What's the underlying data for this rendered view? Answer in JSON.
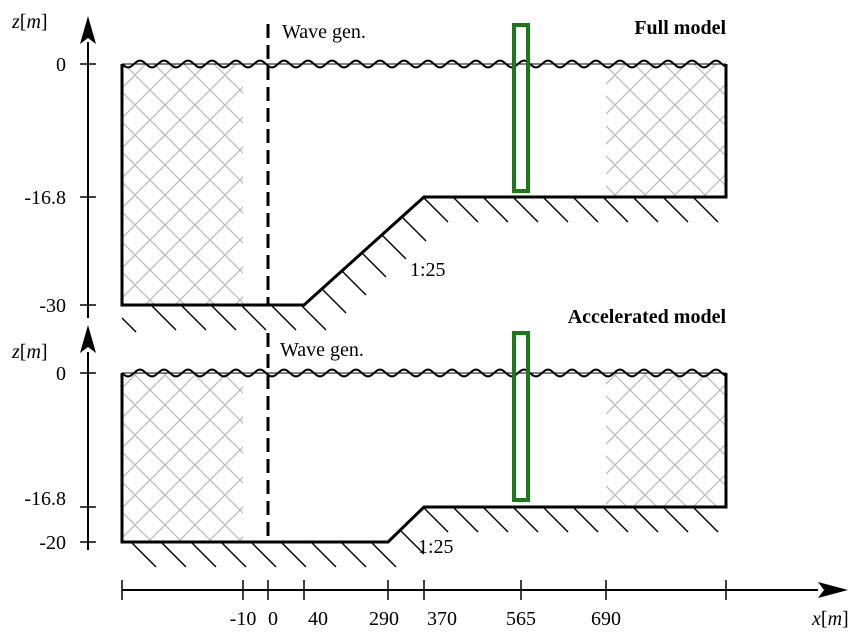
{
  "panels": [
    {
      "title": "Full model",
      "wave_gen_label": "Wave gen.",
      "slope_label": "1:25",
      "y_axis_label_var": "z",
      "y_axis_label_unit": "m",
      "y_ticks": [
        "0",
        "-16.8",
        "-30"
      ]
    },
    {
      "title": "Accelerated model",
      "wave_gen_label": "Wave gen.",
      "slope_label": "1:25",
      "y_axis_label_var": "z",
      "y_axis_label_unit": "m",
      "y_ticks": [
        "0",
        "-16.8",
        "-20"
      ]
    }
  ],
  "x_axis": {
    "label_var": "x",
    "label_unit": "m",
    "ticks": [
      "-10",
      "0",
      "40",
      "290",
      "370",
      "565",
      "690"
    ]
  },
  "colors": {
    "line": "#000000",
    "hatch": "#bbbbbb",
    "gauge": "#1a7a1a"
  }
}
